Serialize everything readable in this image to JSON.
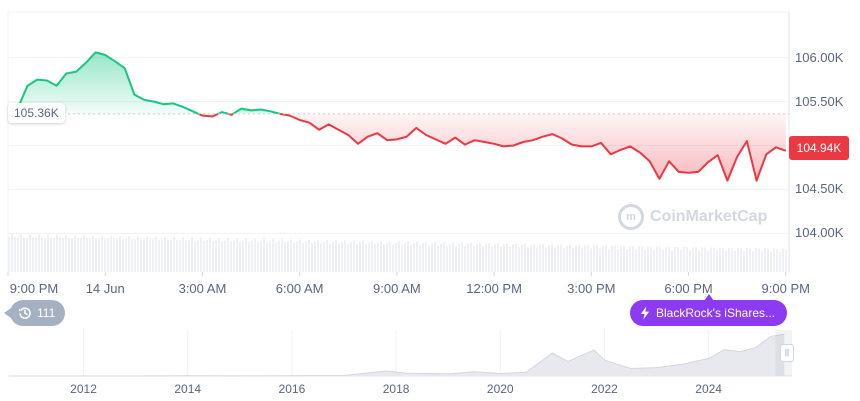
{
  "chart_data": [
    {
      "type": "line",
      "y_axis_labels": [
        "106.00K",
        "105.50K",
        "105.00K",
        "104.50K",
        "104.00K"
      ],
      "y_ticks": [
        106000,
        105500,
        105000,
        104500,
        104000
      ],
      "ylim": [
        103560,
        106520
      ],
      "x_axis_labels": [
        "9:00 PM",
        "14 Jun",
        "3:00 AM",
        "6:00 AM",
        "9:00 AM",
        "12:00 PM",
        "3:00 PM",
        "6:00 PM",
        "9:00 PM"
      ],
      "x_ticks": [
        0,
        3,
        6,
        9,
        12,
        15,
        18,
        21,
        24
      ],
      "xlim": [
        0,
        24.1
      ],
      "reference_value": 105360,
      "reference_label": "105.36K",
      "current_value": 104940,
      "current_label": "104.94K",
      "colors": {
        "above": "#16c784",
        "below": "#ea3943"
      },
      "series": [
        {
          "x": [
            0,
            0.3,
            0.6,
            0.9,
            1.2,
            1.5,
            1.8,
            2.1,
            2.4,
            2.7,
            3.0,
            3.3,
            3.6,
            3.9,
            4.2,
            4.5,
            4.8,
            5.1,
            5.4,
            5.7,
            6.0,
            6.3,
            6.6,
            6.9,
            7.2,
            7.5,
            7.8,
            8.1,
            8.4,
            8.7,
            9.0,
            9.3,
            9.6,
            9.9,
            10.2,
            10.5,
            10.8,
            11.1,
            11.4,
            11.7,
            12.0,
            12.3,
            12.6,
            12.9,
            13.2,
            13.5,
            13.8,
            14.1,
            14.4,
            14.7,
            15.0,
            15.3,
            15.6,
            15.9,
            16.2,
            16.5,
            16.8,
            17.1,
            17.4,
            17.7,
            18.0,
            18.3,
            18.6,
            18.9,
            19.2,
            19.5,
            19.8,
            20.1,
            20.4,
            20.7,
            21.0,
            21.3,
            21.6,
            21.9,
            22.2,
            22.5,
            22.8,
            23.1,
            23.4,
            23.7,
            24.0
          ],
          "values": [
            105440,
            105420,
            105680,
            105750,
            105740,
            105680,
            105820,
            105840,
            105940,
            106060,
            106030,
            105960,
            105880,
            105580,
            105520,
            105500,
            105470,
            105480,
            105440,
            105390,
            105340,
            105330,
            105380,
            105350,
            105420,
            105400,
            105410,
            105390,
            105360,
            105340,
            105290,
            105260,
            105180,
            105240,
            105180,
            105120,
            105020,
            105100,
            105140,
            105060,
            105070,
            105100,
            105200,
            105120,
            105070,
            105020,
            105090,
            105010,
            105060,
            105040,
            105020,
            104990,
            105000,
            105040,
            105060,
            105100,
            105130,
            105080,
            105010,
            104990,
            104990,
            105030,
            104900,
            104950,
            104990,
            104920,
            104820,
            104620,
            104820,
            104700,
            104690,
            104700,
            104810,
            104890,
            104600,
            104870,
            105050,
            104600,
            104900,
            104980,
            104940
          ]
        }
      ],
      "annotation": "BlackRock's iShares...",
      "events_count": "111"
    },
    {
      "type": "area",
      "x_axis_labels": [
        "2012",
        "2014",
        "2016",
        "2018",
        "2020",
        "2022",
        "2024"
      ],
      "x_years": [
        2012,
        2014,
        2016,
        2018,
        2020,
        2022,
        2024
      ],
      "xlim": [
        2010.55,
        2025.6
      ],
      "x": [
        2010.6,
        2012,
        2013,
        2014,
        2015,
        2016,
        2017,
        2017.8,
        2018.2,
        2019,
        2019.5,
        2020,
        2020.5,
        2021,
        2021.3,
        2021.8,
        2022,
        2022.5,
        2023,
        2023.5,
        2024,
        2024.3,
        2024.6,
        2024.9,
        2025.2,
        2025.45
      ],
      "values": [
        0,
        0,
        0.1,
        0.4,
        0.3,
        0.5,
        1.2,
        12,
        7,
        5,
        10,
        6,
        9,
        55,
        35,
        62,
        38,
        18,
        20,
        28,
        42,
        63,
        58,
        68,
        95,
        100
      ],
      "ylim": [
        0,
        110
      ]
    }
  ],
  "watermark": {
    "text": "CoinMarketCap",
    "glyph": "m"
  },
  "icons": {
    "events": "history-icon",
    "news": "lightning-icon",
    "handle": "pause-handle-icon"
  }
}
